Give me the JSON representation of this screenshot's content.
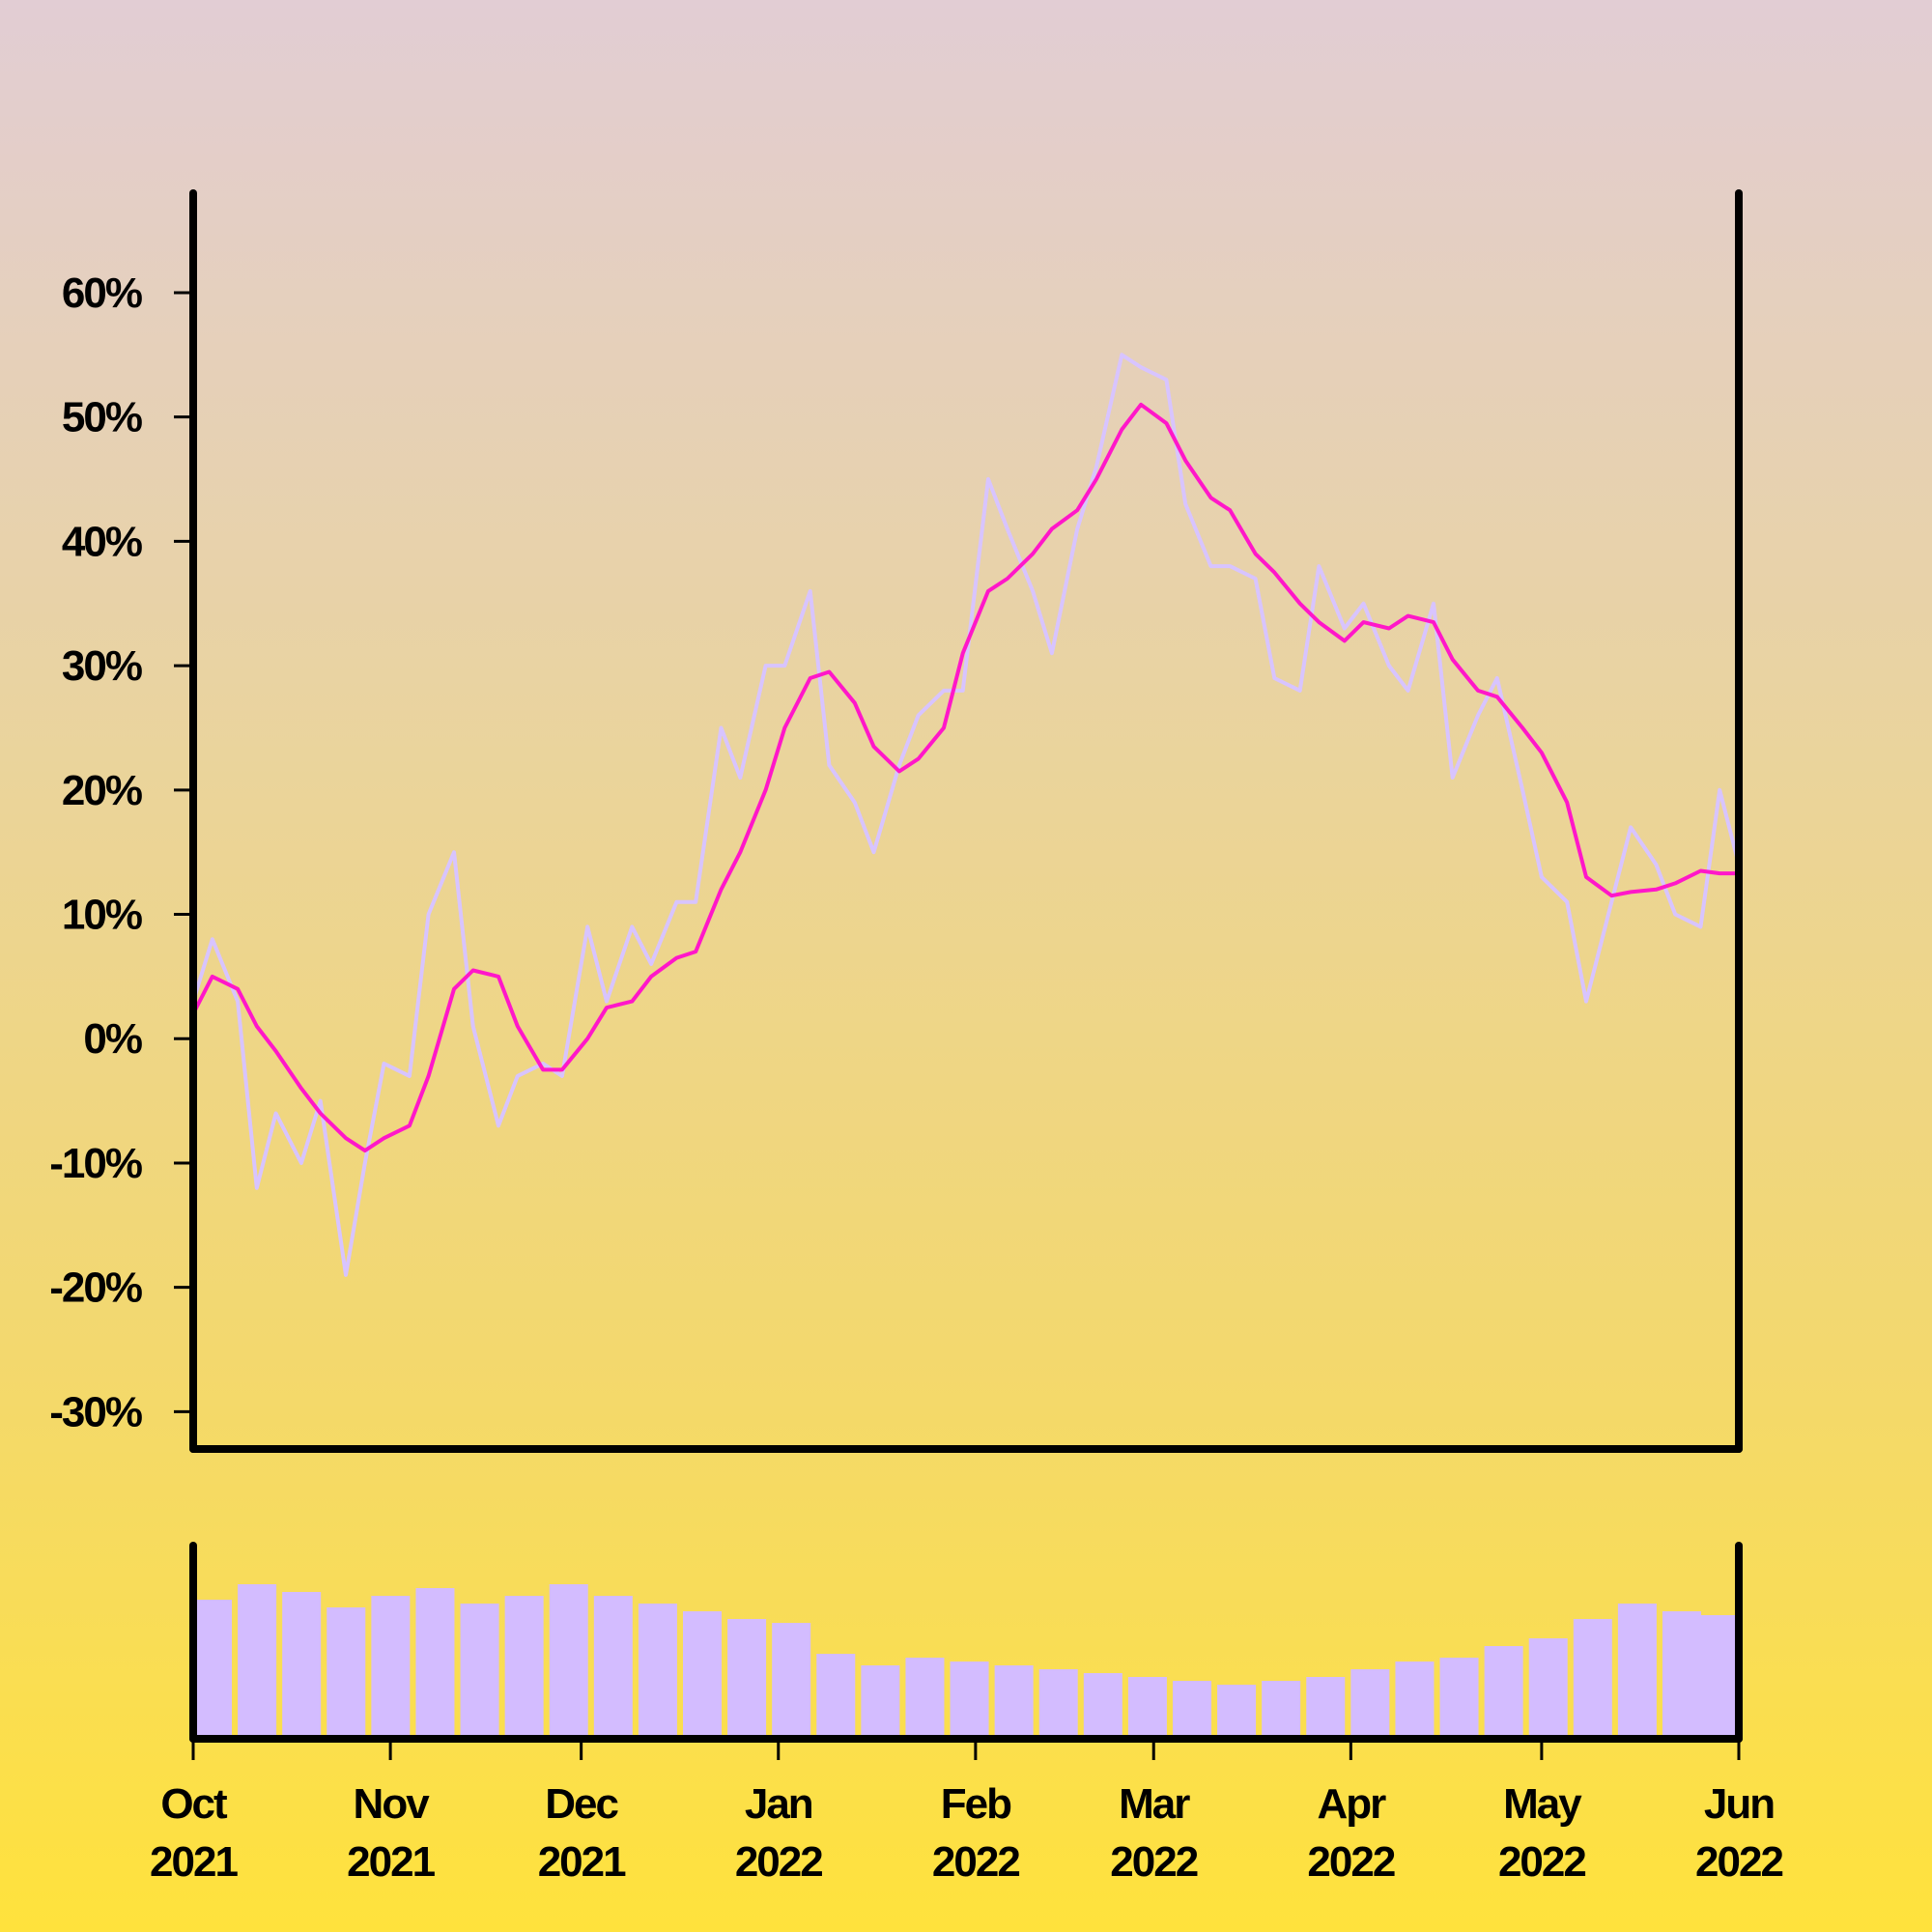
{
  "colors": {
    "price": "#d8c4ff",
    "moving_average": "#ff17c9",
    "volume": "#d3bcff",
    "axis": "#000000",
    "background_top": "#e2cdd4",
    "background_bottom": "#ffe23c"
  },
  "chart_data": [
    {
      "type": "line",
      "title": "",
      "xlabel": "",
      "ylabel": "",
      "ylim": [
        -33,
        68
      ],
      "xlim": [
        "2021-10-01",
        "2022-06-01"
      ],
      "grid": false,
      "y_tick_labels": [
        "-30%",
        "-20%",
        "-10%",
        "0%",
        "10%",
        "20%",
        "30%",
        "40%",
        "50%",
        "60%"
      ],
      "y_ticks": [
        -30,
        -20,
        -10,
        0,
        10,
        20,
        30,
        40,
        50,
        60
      ],
      "series": [
        {
          "style": "thin lavender line (daily return)",
          "x": [
            "2021-10-01",
            "2021-10-04",
            "2021-10-08",
            "2021-10-11",
            "2021-10-14",
            "2021-10-18",
            "2021-10-21",
            "2021-10-25",
            "2021-10-28",
            "2021-10-31",
            "2021-11-04",
            "2021-11-07",
            "2021-11-11",
            "2021-11-14",
            "2021-11-18",
            "2021-11-21",
            "2021-11-25",
            "2021-11-28",
            "2021-12-02",
            "2021-12-05",
            "2021-12-09",
            "2021-12-12",
            "2021-12-16",
            "2021-12-19",
            "2021-12-23",
            "2021-12-26",
            "2021-12-30",
            "2022-01-02",
            "2022-01-06",
            "2022-01-09",
            "2022-01-13",
            "2022-01-16",
            "2022-01-20",
            "2022-01-23",
            "2022-01-27",
            "2022-01-30",
            "2022-02-03",
            "2022-02-06",
            "2022-02-10",
            "2022-02-13",
            "2022-02-17",
            "2022-02-20",
            "2022-02-24",
            "2022-02-27",
            "2022-03-03",
            "2022-03-06",
            "2022-03-10",
            "2022-03-13",
            "2022-03-17",
            "2022-03-20",
            "2022-03-24",
            "2022-03-27",
            "2022-03-31",
            "2022-04-03",
            "2022-04-07",
            "2022-04-10",
            "2022-04-14",
            "2022-04-17",
            "2022-04-21",
            "2022-04-24",
            "2022-04-28",
            "2022-05-01",
            "2022-05-05",
            "2022-05-08",
            "2022-05-12",
            "2022-05-15",
            "2022-05-19",
            "2022-05-22",
            "2022-05-26",
            "2022-05-29",
            "2022-06-01"
          ],
          "values": [
            3,
            8,
            3,
            -12,
            -6,
            -10,
            -5,
            -19,
            -10,
            -2,
            -3,
            10,
            15,
            1,
            -7,
            -3,
            -2,
            -3,
            9,
            3,
            9,
            6,
            11,
            11,
            25,
            21,
            30,
            30,
            36,
            22,
            19,
            15,
            22,
            26,
            28,
            28,
            45,
            41,
            36,
            31,
            41,
            46,
            55,
            54,
            53,
            43,
            38,
            38,
            37,
            29,
            28,
            38,
            33,
            35,
            30,
            28,
            35,
            21,
            26,
            29,
            20,
            13,
            11,
            3,
            11,
            17,
            14,
            10,
            9,
            20,
            14
          ]
        },
        {
          "style": "magenta moving average",
          "x": [
            "2021-10-01",
            "2021-10-04",
            "2021-10-08",
            "2021-10-11",
            "2021-10-14",
            "2021-10-18",
            "2021-10-21",
            "2021-10-25",
            "2021-10-28",
            "2021-10-31",
            "2021-11-04",
            "2021-11-07",
            "2021-11-11",
            "2021-11-14",
            "2021-11-18",
            "2021-11-21",
            "2021-11-25",
            "2021-11-28",
            "2021-12-02",
            "2021-12-05",
            "2021-12-09",
            "2021-12-12",
            "2021-12-16",
            "2021-12-19",
            "2021-12-23",
            "2021-12-26",
            "2021-12-30",
            "2022-01-02",
            "2022-01-06",
            "2022-01-09",
            "2022-01-13",
            "2022-01-16",
            "2022-01-20",
            "2022-01-23",
            "2022-01-27",
            "2022-01-30",
            "2022-02-03",
            "2022-02-06",
            "2022-02-10",
            "2022-02-13",
            "2022-02-17",
            "2022-02-20",
            "2022-02-24",
            "2022-02-27",
            "2022-03-03",
            "2022-03-06",
            "2022-03-10",
            "2022-03-13",
            "2022-03-17",
            "2022-03-20",
            "2022-03-24",
            "2022-03-27",
            "2022-03-31",
            "2022-04-03",
            "2022-04-07",
            "2022-04-10",
            "2022-04-14",
            "2022-04-17",
            "2022-04-21",
            "2022-04-24",
            "2022-04-28",
            "2022-05-01",
            "2022-05-05",
            "2022-05-08",
            "2022-05-12",
            "2022-05-15",
            "2022-05-19",
            "2022-05-22",
            "2022-05-26",
            "2022-05-29",
            "2022-06-01"
          ],
          "values": [
            2,
            5,
            4,
            1,
            -1,
            -4,
            -6,
            -8,
            -9,
            -8,
            -7,
            -3,
            4,
            5.5,
            5,
            1,
            -2.5,
            -2.5,
            0,
            2.5,
            3,
            5,
            6.5,
            7,
            12,
            15,
            20,
            25,
            29,
            29.5,
            27,
            23.5,
            21.5,
            22.5,
            25,
            31,
            36,
            37,
            39,
            41,
            42.5,
            45,
            49,
            51,
            49.5,
            46.5,
            43.5,
            42.5,
            39,
            37.5,
            35,
            33.5,
            32,
            33.5,
            33,
            34,
            33.5,
            30.5,
            28,
            27.5,
            25,
            23,
            19,
            13,
            11.5,
            11.8,
            12,
            12.5,
            13.5,
            13.3,
            13.3
          ]
        }
      ]
    },
    {
      "type": "bar",
      "title": "",
      "x_tick_labels": [
        "Oct 2021",
        "Nov 2021",
        "Dec 2021",
        "Jan 2022",
        "Feb 2022",
        "Mar 2022",
        "Apr 2022",
        "May 2022",
        "Jun 2022"
      ],
      "x_ticks": [
        "2021-10-01",
        "2021-11-01",
        "2021-12-01",
        "2022-01-01",
        "2022-02-01",
        "2022-03-01",
        "2022-04-01",
        "2022-05-01",
        "2022-06-01"
      ],
      "series": [
        {
          "style": "lavender volume bars (relative)",
          "x": [
            "2021-10-01",
            "2021-10-08",
            "2021-10-15",
            "2021-10-22",
            "2021-10-29",
            "2021-11-05",
            "2021-11-12",
            "2021-11-19",
            "2021-11-26",
            "2021-12-03",
            "2021-12-10",
            "2021-12-17",
            "2021-12-24",
            "2021-12-31",
            "2022-01-07",
            "2022-01-14",
            "2022-01-21",
            "2022-01-28",
            "2022-02-04",
            "2022-02-11",
            "2022-02-18",
            "2022-02-25",
            "2022-03-04",
            "2022-03-11",
            "2022-03-18",
            "2022-03-25",
            "2022-04-01",
            "2022-04-08",
            "2022-04-15",
            "2022-04-22",
            "2022-04-29",
            "2022-05-06",
            "2022-05-13",
            "2022-05-20",
            "2022-05-27",
            "2022-06-01"
          ],
          "values": [
            0.72,
            0.8,
            0.76,
            0.68,
            0.74,
            0.78,
            0.7,
            0.74,
            0.8,
            0.74,
            0.7,
            0.66,
            0.62,
            0.6,
            0.44,
            0.38,
            0.42,
            0.4,
            0.38,
            0.36,
            0.34,
            0.32,
            0.3,
            0.28,
            0.3,
            0.32,
            0.36,
            0.4,
            0.42,
            0.48,
            0.52,
            0.62,
            0.7,
            0.66,
            0.64,
            0.62
          ]
        }
      ]
    }
  ]
}
